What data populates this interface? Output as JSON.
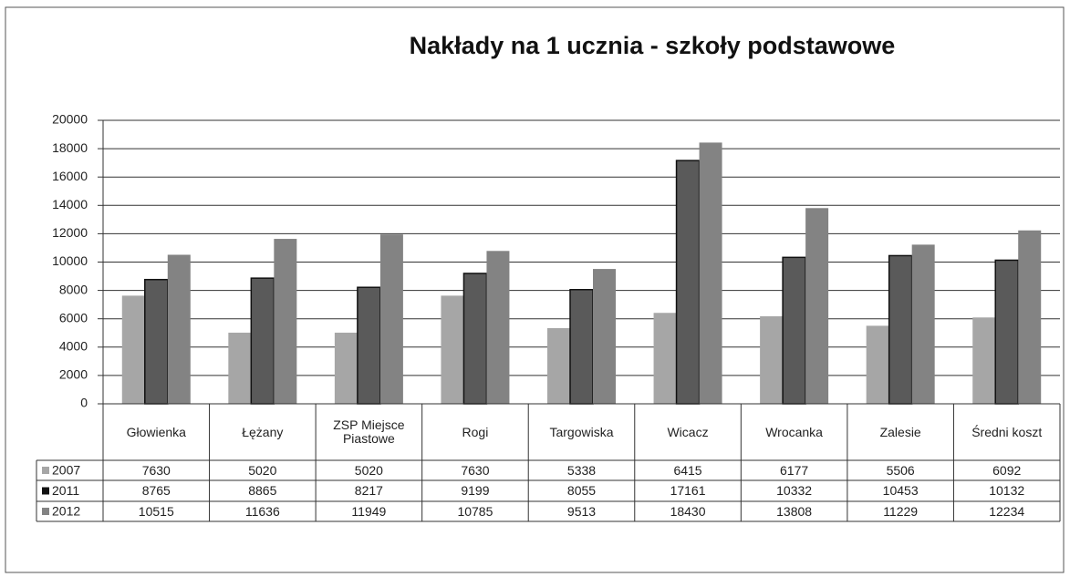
{
  "chart_data": {
    "type": "bar",
    "title": "Nakłady na 1 ucznia - szkoły podstawowe",
    "categories": [
      "Głowienka",
      "Łężany",
      "ZSP Miejsce Piastowe",
      "Rogi",
      "Targowiska",
      "Wicacz",
      "Wrocanka",
      "Zalesie",
      "Średni koszt"
    ],
    "series": [
      {
        "name": "2007",
        "color": "#a6a6a6",
        "values": [
          7630,
          5020,
          5020,
          7630,
          5338,
          6415,
          6177,
          5506,
          6092
        ]
      },
      {
        "name": "2011",
        "color": "#5a5a5a",
        "values": [
          8765,
          8865,
          8217,
          9199,
          8055,
          17161,
          10332,
          10453,
          10132
        ]
      },
      {
        "name": "2012",
        "color": "#838383",
        "values": [
          10515,
          11636,
          11949,
          10785,
          9513,
          18430,
          13808,
          11229,
          12234
        ]
      }
    ],
    "ylim": [
      0,
      20000
    ],
    "yticks": [
      0,
      2000,
      4000,
      6000,
      8000,
      10000,
      12000,
      14000,
      16000,
      18000,
      20000
    ],
    "grid": true,
    "data_table": true
  }
}
